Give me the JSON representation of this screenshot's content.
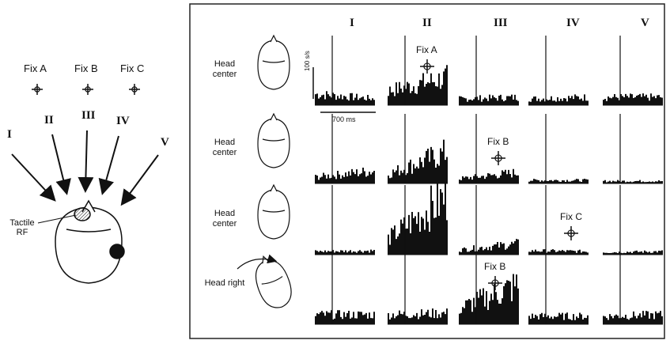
{
  "left_panel": {
    "fixations": [
      "Fix A",
      "Fix B",
      "Fix C"
    ],
    "directions": [
      "I",
      "II",
      "III",
      "IV",
      "V"
    ],
    "tactile_label": "Tactile RF"
  },
  "right_panel": {
    "columns": [
      "I",
      "II",
      "III",
      "IV",
      "V"
    ],
    "rows": [
      {
        "label": "Head center",
        "fixation": "Fix A"
      },
      {
        "label": "Head center",
        "fixation": "Fix B"
      },
      {
        "label": "Head center",
        "fixation": "Fix C"
      },
      {
        "label": "Head right",
        "fixation": "Fix B"
      }
    ],
    "scale_rate": "100 s/s",
    "scale_time": "700 ms"
  }
}
